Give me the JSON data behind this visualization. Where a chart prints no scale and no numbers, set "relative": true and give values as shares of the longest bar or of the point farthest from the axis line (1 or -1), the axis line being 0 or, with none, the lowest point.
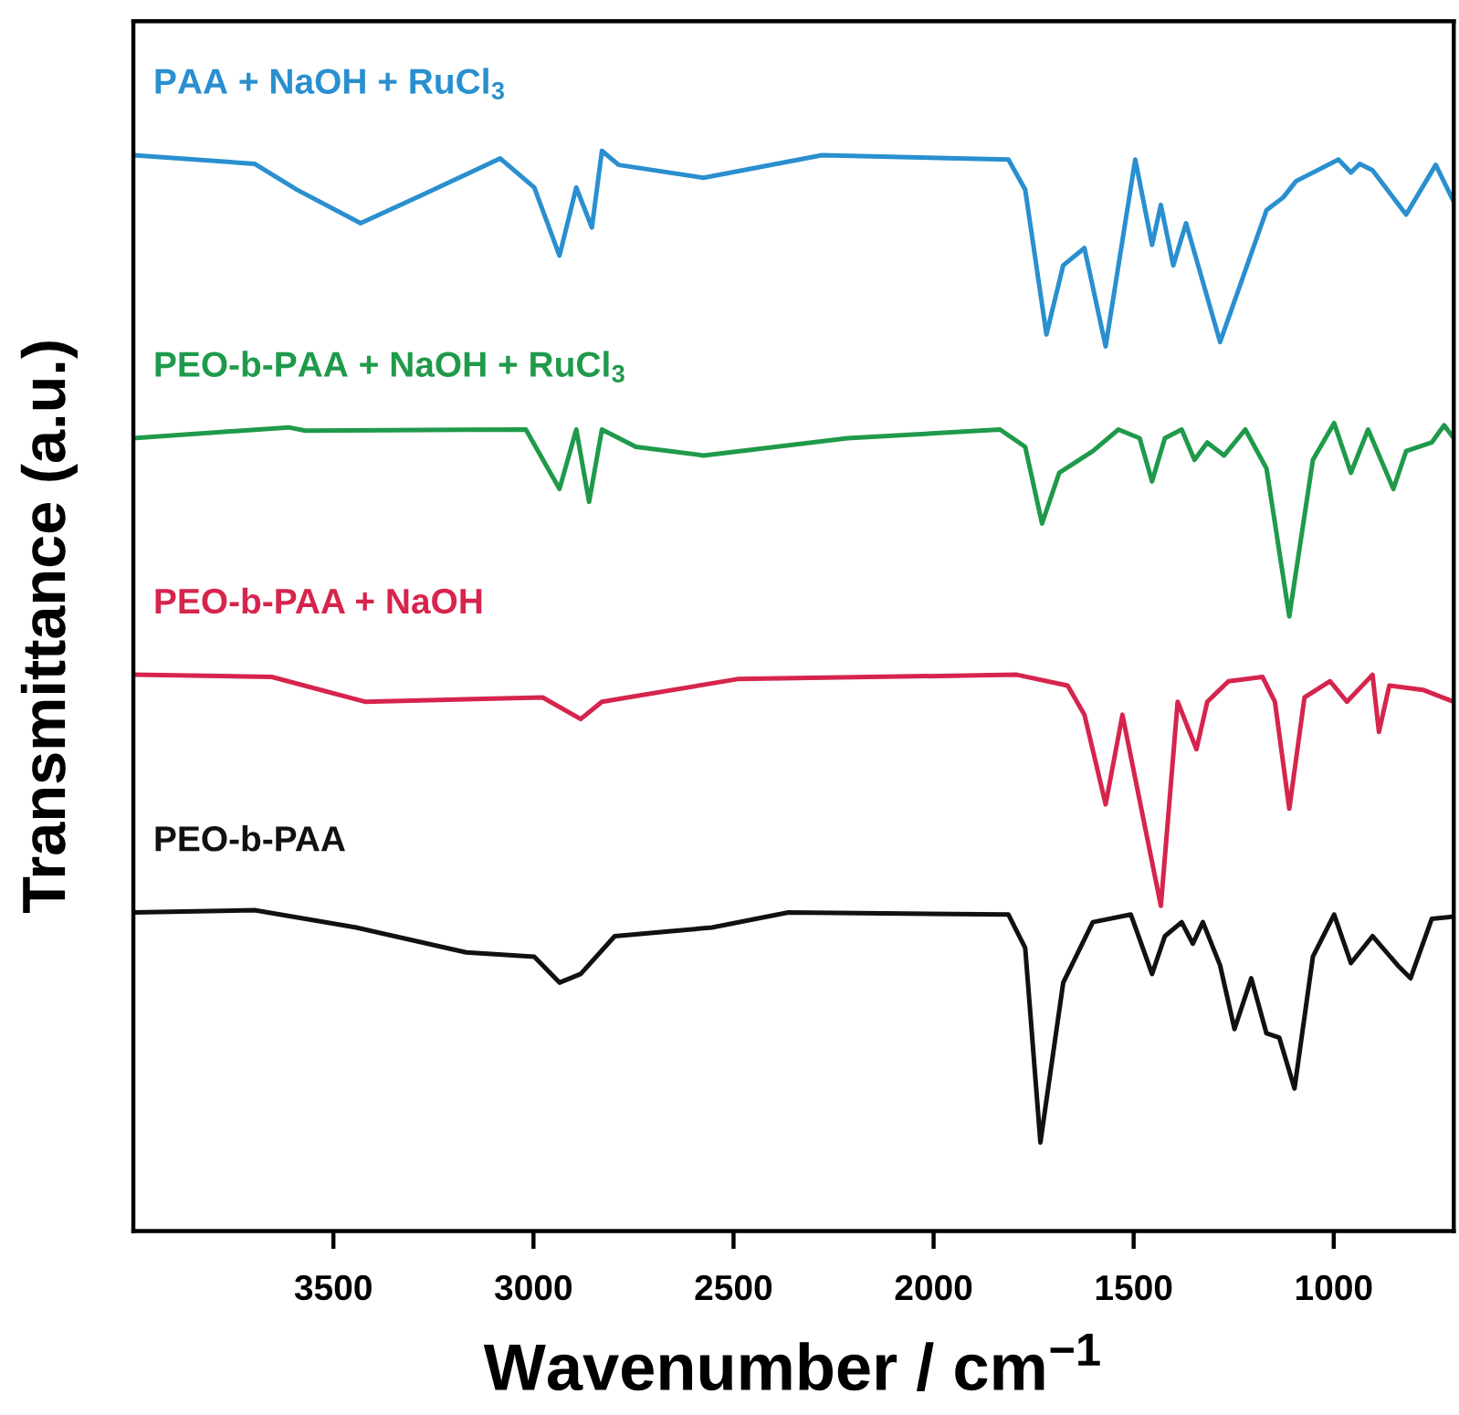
{
  "chart_data": {
    "type": "line",
    "relative": true,
    "xlabel": "Wavenumber / cm$^{−1}$",
    "ylabel": "Transmittance (a.u.)",
    "xlim": [
      4000,
      700
    ],
    "xticks": [
      3500,
      3000,
      2500,
      2000,
      1500,
      1000
    ],
    "grid": false,
    "legend": false,
    "marker": "none",
    "line_style": "solid",
    "series": [
      {
        "name": "PAA + NaOH + RuCl$_{3}$",
        "color": "#2a8fcf",
        "x": [
          4000,
          3697,
          3591,
          3432,
          3273,
          3083,
          2998,
          2935,
          2893,
          2854,
          2829,
          2787,
          2575,
          2279,
          1813,
          1771,
          1718,
          1676,
          1623,
          1570,
          1496,
          1454,
          1432,
          1401,
          1369,
          1284,
          1168,
          1126,
          1094,
          988,
          957,
          935,
          903,
          819,
          745,
          700
        ],
        "values": [
          0.996,
          0.988,
          0.964,
          0.933,
          0.96,
          0.993,
          0.966,
          0.903,
          0.966,
          0.929,
          1,
          0.987,
          0.975,
          0.996,
          0.992,
          0.964,
          0.83,
          0.894,
          0.91,
          0.819,
          0.992,
          0.913,
          0.95,
          0.894,
          0.933,
          0.823,
          0.945,
          0.957,
          0.972,
          0.992,
          0.98,
          0.988,
          0.982,
          0.941,
          0.987,
          0.953
        ]
      },
      {
        "name": "PEO-b-PAA + NaOH + RuCl$_{3}$",
        "color": "#1f9a4a",
        "x": [
          4000,
          3612,
          3570,
          3019,
          2935,
          2893,
          2861,
          2829,
          2744,
          2575,
          2215,
          1834,
          1771,
          1729,
          1686,
          1602,
          1538,
          1485,
          1454,
          1422,
          1380,
          1348,
          1316,
          1274,
          1221,
          1168,
          1111,
          1052,
          999,
          957,
          914,
          851,
          819,
          755,
          724,
          700
        ],
        "values": [
          0.734,
          0.744,
          0.741,
          0.742,
          0.687,
          0.742,
          0.675,
          0.742,
          0.726,
          0.718,
          0.734,
          0.742,
          0.726,
          0.655,
          0.702,
          0.722,
          0.742,
          0.734,
          0.694,
          0.734,
          0.742,
          0.714,
          0.73,
          0.718,
          0.742,
          0.706,
          0.569,
          0.714,
          0.748,
          0.702,
          0.742,
          0.687,
          0.722,
          0.73,
          0.746,
          0.734
        ]
      },
      {
        "name": "PEO-b-PAA + NaOH",
        "color": "#d6254d",
        "x": [
          4000,
          3654,
          3421,
          2977,
          2882,
          2829,
          2490,
          1792,
          1665,
          1623,
          1570,
          1528,
          1432,
          1390,
          1343,
          1316,
          1263,
          1178,
          1147,
          1111,
          1073,
          1009,
          967,
          903,
          887,
          861,
          777,
          700
        ],
        "values": [
          0.515,
          0.513,
          0.49,
          0.494,
          0.474,
          0.49,
          0.511,
          0.515,
          0.505,
          0.478,
          0.395,
          0.478,
          0.301,
          0.49,
          0.446,
          0.49,
          0.509,
          0.513,
          0.49,
          0.391,
          0.494,
          0.509,
          0.49,
          0.515,
          0.462,
          0.505,
          0.501,
          0.49
        ]
      },
      {
        "name": "PEO-b-PAA",
        "color": "#111111",
        "x": [
          4000,
          3697,
          3443,
          3168,
          2998,
          2935,
          2882,
          2797,
          2554,
          2363,
          1813,
          1771,
          1733,
          1676,
          1602,
          1507,
          1454,
          1422,
          1380,
          1352,
          1327,
          1284,
          1248,
          1206,
          1168,
          1136,
          1098,
          1052,
          999,
          957,
          903,
          840,
          808,
          755,
          700
        ],
        "values": [
          0.295,
          0.297,
          0.281,
          0.258,
          0.254,
          0.23,
          0.238,
          0.273,
          0.281,
          0.295,
          0.293,
          0.262,
          0.082,
          0.23,
          0.286,
          0.293,
          0.238,
          0.273,
          0.286,
          0.266,
          0.286,
          0.246,
          0.187,
          0.234,
          0.183,
          0.179,
          0.132,
          0.254,
          0.293,
          0.248,
          0.273,
          0.246,
          0.234,
          0.289,
          0.291
        ]
      }
    ]
  }
}
